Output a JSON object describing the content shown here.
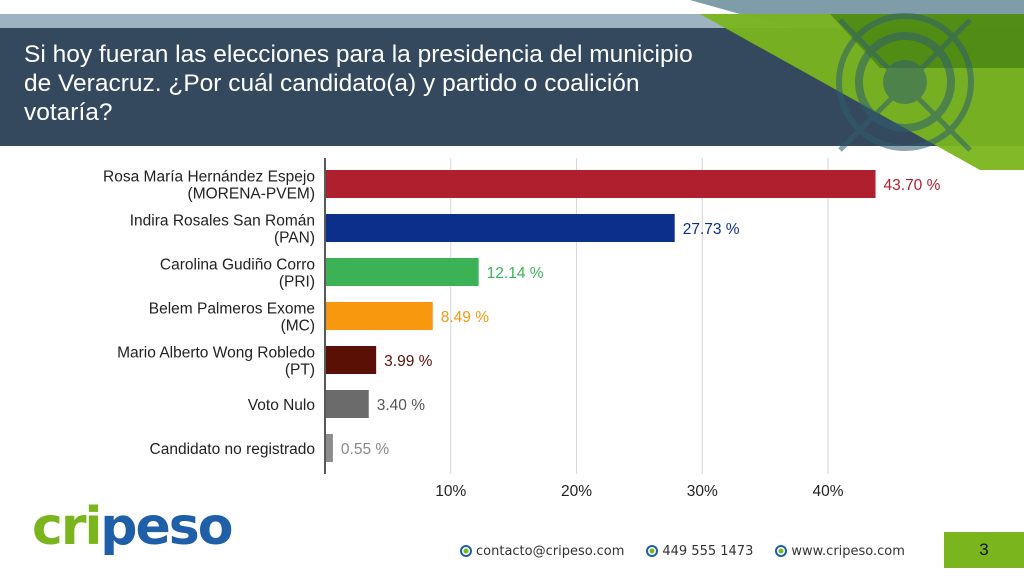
{
  "header": {
    "title": "Si hoy fueran las elecciones para la presidencia del municipio de Veracruz. ¿Por cuál candidato(a) y partido o coalición votaría?"
  },
  "chart_data": {
    "type": "bar",
    "orientation": "horizontal",
    "categories": [
      [
        "Rosa María Hernández Espejo",
        "(MORENA-PVEM)"
      ],
      [
        "Indira Rosales San Román",
        "(PAN)"
      ],
      [
        "Carolina Gudiño Corro",
        "(PRI)"
      ],
      [
        "Belem Palmeros Exome",
        "(MC)"
      ],
      [
        "Mario Alberto Wong Robledo",
        "(PT)"
      ],
      [
        "Voto Nulo"
      ],
      [
        "Candidato no registrado"
      ]
    ],
    "values": [
      43.7,
      27.73,
      12.14,
      8.49,
      3.99,
      3.4,
      0.55
    ],
    "value_labels": [
      "43.70 %",
      "27.73 %",
      "12.14 %",
      "8.49 %",
      "3.99 %",
      "3.40 %",
      "0.55 %"
    ],
    "colors": [
      "#b01f2e",
      "#0b2f8a",
      "#3cb256",
      "#f7980f",
      "#5b1006",
      "#6b6b6b",
      "#8c8c8c"
    ],
    "label_colors": [
      "#b01f2e",
      "#0b2f8a",
      "#3cb256",
      "#f7980f",
      "#5b1006",
      "#555555",
      "#888888"
    ],
    "xticks": [
      10,
      20,
      30,
      40
    ],
    "xtick_labels": [
      "10%",
      "20%",
      "30%",
      "40%"
    ],
    "xlim": [
      0,
      44
    ],
    "grid": true,
    "legend": "none"
  },
  "brand": {
    "logo_text": "cripeso",
    "green": "#7ab51d",
    "blue": "#1f5fa8"
  },
  "footer": {
    "email": "contacto@cripeso.com",
    "phone": "449 555 1473",
    "website": "www.cripeso.com",
    "page_number": "3"
  }
}
